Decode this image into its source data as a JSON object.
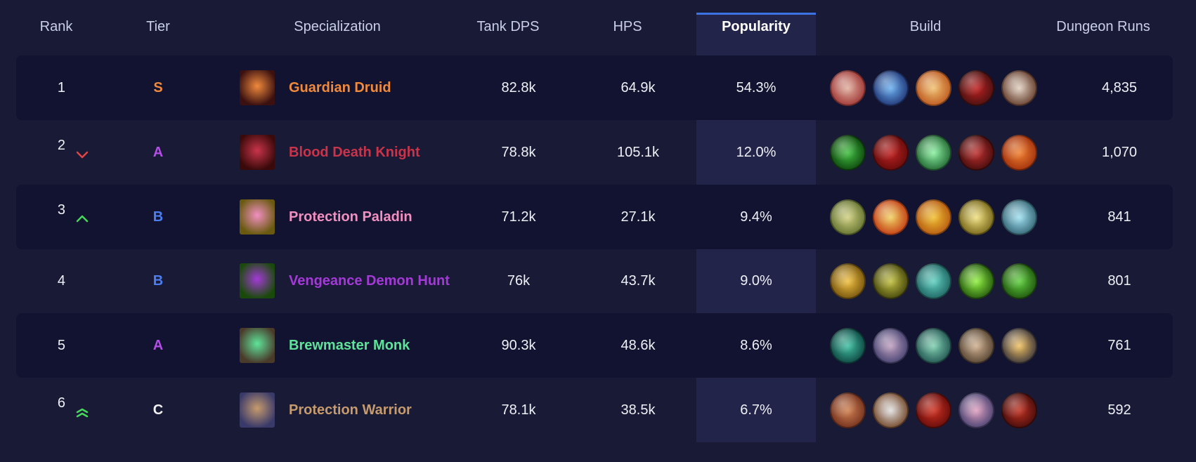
{
  "header": {
    "rank": "Rank",
    "tier": "Tier",
    "specialization": "Specialization",
    "tank_dps": "Tank DPS",
    "hps": "HPS",
    "popularity": "Popularity",
    "build": "Build",
    "dungeon_runs": "Dungeon Runs"
  },
  "rows": [
    {
      "rank": "1",
      "trend": "none",
      "tier": "S",
      "tier_color": "#f08a3c",
      "spec": "Guardian Druid",
      "spec_color": "#f08a3c",
      "spec_icon": "druid-paw-icon",
      "tank_dps": "82.8k",
      "hps": "64.9k",
      "popularity": "54.3%",
      "runs": "4,835",
      "talents": [
        "bleed-claw-icon",
        "blue-swipe-icon",
        "fire-gear-icon",
        "werewolf-icon",
        "bear-claw-icon"
      ],
      "talent_colors": [
        [
          "#9a2b2b",
          "#e0b0a0"
        ],
        [
          "#1a2a6a",
          "#6ab0f0"
        ],
        [
          "#b8501a",
          "#f0c070"
        ],
        [
          "#3a1010",
          "#c02020"
        ],
        [
          "#5a3020",
          "#e0d0c0"
        ]
      ]
    },
    {
      "rank": "2",
      "trend": "down",
      "tier": "A",
      "tier_color": "#b44ee8",
      "spec": "Blood Death Knight",
      "spec_color": "#c9344a",
      "spec_icon": "blood-skull-icon",
      "tank_dps": "78.8k",
      "hps": "105.1k",
      "popularity": "12.0%",
      "runs": "1,070",
      "talents": [
        "void-portal-icon",
        "blood-orb-icon",
        "green-skull-icon",
        "blood-claws-icon",
        "fire-heart-icon"
      ],
      "talent_colors": [
        [
          "#0a3a0a",
          "#40c040"
        ],
        [
          "#5a0a0a",
          "#c02020"
        ],
        [
          "#1a5a2a",
          "#8af0a0"
        ],
        [
          "#3a0a0a",
          "#c03030"
        ],
        [
          "#9a2a0a",
          "#f08030"
        ]
      ]
    },
    {
      "rank": "3",
      "trend": "up",
      "tier": "B",
      "tier_color": "#4c7ef2",
      "spec": "Protection Paladin",
      "spec_color": "#f190c0",
      "spec_icon": "golden-helm-icon",
      "tank_dps": "71.2k",
      "hps": "27.1k",
      "popularity": "9.4%",
      "runs": "841",
      "talents": [
        "holy-skull-icon",
        "light-pillar-icon",
        "divine-figure-icon",
        "golden-shield-icon",
        "arcane-sphere-icon"
      ],
      "talent_colors": [
        [
          "#5a6a2a",
          "#d0d080"
        ],
        [
          "#c03010",
          "#f0d060"
        ],
        [
          "#b05010",
          "#f0c030"
        ],
        [
          "#6a5a10",
          "#f0e080"
        ],
        [
          "#2a5a6a",
          "#a0e0f0"
        ]
      ]
    },
    {
      "rank": "4",
      "trend": "none",
      "tier": "B",
      "tier_color": "#4c7ef2",
      "spec": "Vengeance Demon Hunt",
      "spec_color": "#a33ad6",
      "spec_icon": "demon-wings-icon",
      "tank_dps": "76k",
      "hps": "43.7k",
      "popularity": "9.0%",
      "runs": "801",
      "talents": [
        "golden-blade-icon",
        "demon-face-icon",
        "fel-beast-icon",
        "fel-spiral-icon",
        "fel-demon-icon"
      ],
      "talent_colors": [
        [
          "#6a4a0a",
          "#f0c040"
        ],
        [
          "#3a3a0a",
          "#c0c040"
        ],
        [
          "#1a5a5a",
          "#60d0c0"
        ],
        [
          "#1a4a0a",
          "#90f040"
        ],
        [
          "#1a4a0a",
          "#60d040"
        ]
      ]
    },
    {
      "rank": "5",
      "trend": "none",
      "tier": "A",
      "tier_color": "#b44ee8",
      "spec": "Brewmaster Monk",
      "spec_color": "#5fe39a",
      "spec_icon": "brewmaster-icon",
      "tank_dps": "90.3k",
      "hps": "48.6k",
      "popularity": "8.6%",
      "runs": "761",
      "talents": [
        "jade-vortex-icon",
        "spirit-monk-icon",
        "jade-serpent-icon",
        "ox-statue-icon",
        "stagger-icon"
      ],
      "talent_colors": [
        [
          "#0a3a3a",
          "#40c0a0"
        ],
        [
          "#3a3a6a",
          "#c0a0c0"
        ],
        [
          "#1a4a4a",
          "#80d0b0"
        ],
        [
          "#4a3a2a",
          "#d0b090"
        ],
        [
          "#2a2a3a",
          "#f0c060"
        ]
      ]
    },
    {
      "rank": "6",
      "trend": "double-up",
      "tier": "C",
      "tier_color": "#f2f2f2",
      "spec": "Protection Warrior",
      "spec_color": "#c69b6d",
      "spec_icon": "warrior-shield-icon",
      "tank_dps": "78.1k",
      "hps": "38.5k",
      "popularity": "6.7%",
      "runs": "592",
      "talents": [
        "warrior-roar-icon",
        "steel-shield-icon",
        "crimson-strike-icon",
        "banshee-scream-icon",
        "demon-hide-icon"
      ],
      "talent_colors": [
        [
          "#6a2a1a",
          "#d08050"
        ],
        [
          "#6a3a1a",
          "#e0e0e0"
        ],
        [
          "#5a0a0a",
          "#d03020"
        ],
        [
          "#3a3a6a",
          "#e0a0c0"
        ],
        [
          "#3a0a0a",
          "#c03020"
        ]
      ]
    }
  ]
}
